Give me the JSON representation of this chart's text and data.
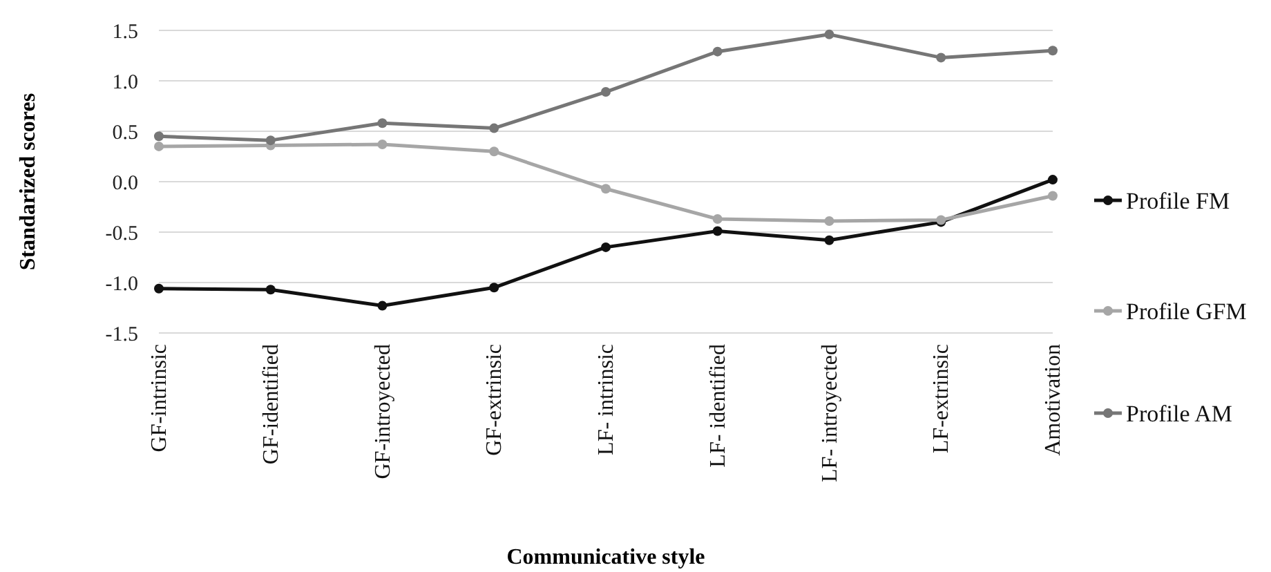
{
  "chart_data": {
    "type": "line",
    "xlabel": "Communicative style",
    "ylabel": "Standarized scores",
    "categories": [
      "GF-intrinsic",
      "GF-identified",
      "GF-introyected",
      "GF-extrinsic",
      "LF- intrinsic",
      "LF- identified",
      "LF- introyected",
      "LF-extrinsic",
      "Amotivation"
    ],
    "series": [
      {
        "name": "Profile FM",
        "color": "#111111",
        "values": [
          -1.06,
          -1.07,
          -1.23,
          -1.05,
          -0.65,
          -0.49,
          -0.58,
          -0.4,
          0.02
        ]
      },
      {
        "name": "Profile GFM",
        "color": "#a6a6a6",
        "values": [
          0.35,
          0.36,
          0.37,
          0.3,
          -0.07,
          -0.37,
          -0.39,
          -0.38,
          -0.14
        ]
      },
      {
        "name": "Profile AM",
        "color": "#767676",
        "values": [
          0.45,
          0.41,
          0.58,
          0.53,
          0.89,
          1.29,
          1.46,
          1.23,
          1.3
        ]
      }
    ],
    "ylim": [
      -1.5,
      1.5
    ],
    "yticks": [
      {
        "value": -1.5,
        "label": "-1.5"
      },
      {
        "value": -1,
        "label": "-1.0"
      },
      {
        "value": -0.5,
        "label": "-0.5"
      },
      {
        "value": 0,
        "label": "0.0"
      },
      {
        "value": 0.5,
        "label": "0.5"
      },
      {
        "value": 1,
        "label": "1.0"
      },
      {
        "value": 1.5,
        "label": "1.5"
      }
    ],
    "grid": "y",
    "legend": "right",
    "marker": "circle",
    "line_style": "solid"
  }
}
